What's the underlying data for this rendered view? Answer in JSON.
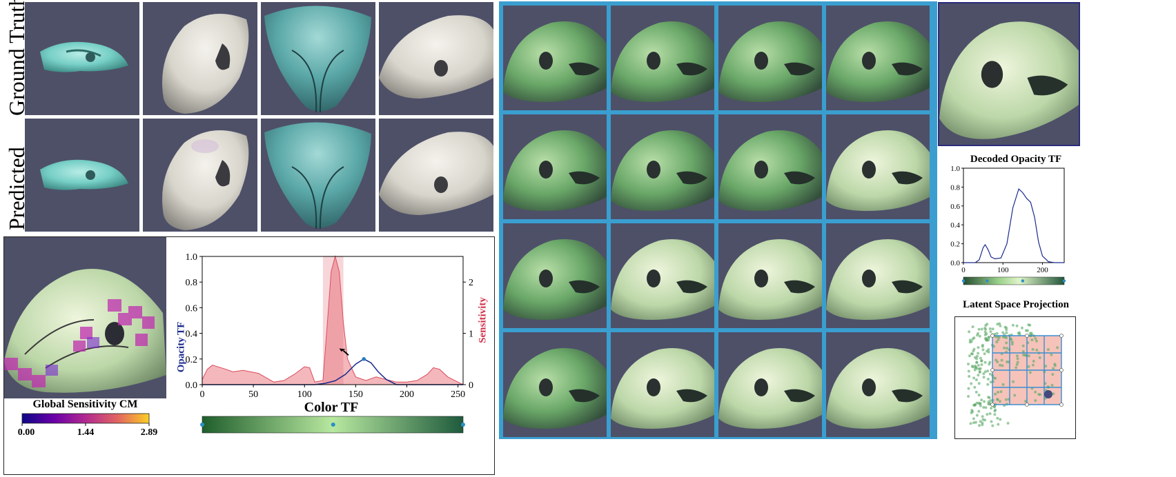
{
  "row_labels": {
    "ground_truth": "Ground Truth",
    "predicted": "Predicted"
  },
  "colormap_legend": {
    "title": "Global Sensitivity CM",
    "ticks": [
      "0.00",
      "1.44",
      "2.89"
    ]
  },
  "sensitivity_chart": {
    "xlabel": "Color TF",
    "ylabel_left": "Opacity TF",
    "ylabel_right": "Sensitivity",
    "x_ticks": [
      "0",
      "50",
      "100",
      "150",
      "200",
      "250"
    ],
    "y_ticks_left": [
      "0.0",
      "0.2",
      "0.4",
      "0.6",
      "0.8",
      "1.0"
    ],
    "y_ticks_right": [
      "0",
      "1",
      "2"
    ]
  },
  "decoded_opacity": {
    "title": "Decoded Opacity TF",
    "x_ticks": [
      "0",
      "100",
      "200"
    ],
    "y_ticks": [
      "0.0",
      "0.2",
      "0.4",
      "0.6",
      "0.8",
      "1.0"
    ]
  },
  "latent_projection": {
    "title": "Latent Space Projection"
  },
  "colors": {
    "background_tile": "#4e5068",
    "grid_border": "#3a9fd0",
    "opacity_curve": "#1a2a8c",
    "sensitivity_fill": "#f0a0a6",
    "sensitivity_line": "#d94a5a"
  },
  "chart_data": [
    {
      "type": "area",
      "title": "",
      "xlabel": "Color TF",
      "ylabel": "Opacity TF",
      "y2label": "Sensitivity",
      "xlim": [
        0,
        255
      ],
      "ylim": [
        0,
        1.0
      ],
      "y2lim": [
        0,
        2.5
      ],
      "series": [
        {
          "name": "Opacity TF",
          "x": [
            0,
            110,
            120,
            130,
            140,
            150,
            158,
            165,
            172,
            180,
            190,
            255
          ],
          "values": [
            0,
            0,
            0.01,
            0.03,
            0.08,
            0.16,
            0.2,
            0.17,
            0.1,
            0.04,
            0.0,
            0
          ]
        },
        {
          "name": "Sensitivity",
          "x": [
            0,
            5,
            10,
            20,
            30,
            40,
            55,
            70,
            80,
            90,
            100,
            105,
            110,
            118,
            122,
            126,
            130,
            134,
            138,
            142,
            150,
            160,
            170,
            180,
            190,
            200,
            210,
            220,
            226,
            232,
            240,
            250,
            255
          ],
          "values": [
            0.1,
            0.3,
            0.38,
            0.32,
            0.25,
            0.28,
            0.22,
            0.05,
            0.08,
            0.2,
            0.35,
            0.33,
            0.05,
            0.08,
            1.1,
            2.2,
            2.5,
            2.2,
            1.2,
            0.5,
            0.15,
            0.08,
            0.15,
            0.1,
            0.05,
            0.05,
            0.08,
            0.2,
            0.33,
            0.3,
            0.15,
            0.05,
            0.0
          ]
        }
      ],
      "color_tf_control_points": [
        0,
        128,
        255
      ]
    },
    {
      "type": "line",
      "title": "Decoded Opacity TF",
      "xlim": [
        0,
        255
      ],
      "ylim": [
        0,
        1.0
      ],
      "series": [
        {
          "name": "",
          "x": [
            0,
            30,
            40,
            50,
            55,
            62,
            70,
            80,
            95,
            110,
            125,
            140,
            150,
            160,
            170,
            180,
            190,
            200,
            215,
            230,
            255
          ],
          "values": [
            0,
            0.0,
            0.03,
            0.16,
            0.19,
            0.14,
            0.06,
            0.04,
            0.05,
            0.2,
            0.58,
            0.78,
            0.74,
            0.68,
            0.64,
            0.48,
            0.22,
            0.07,
            0.01,
            0.0,
            0
          ]
        }
      ],
      "color_tf_control_points": [
        0,
        60,
        150,
        255
      ]
    }
  ]
}
